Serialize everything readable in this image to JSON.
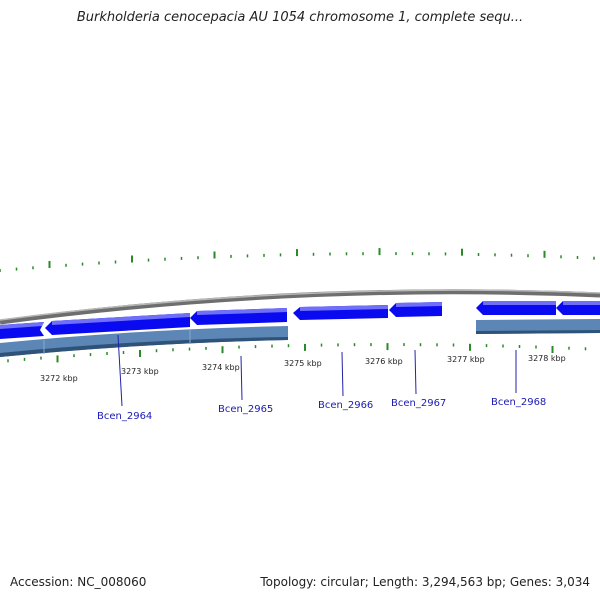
{
  "title": "Burkholderia cenocepacia AU 1054 chromosome 1, complete sequ...",
  "footer": {
    "accession": "Accession: NC_008060",
    "summary": "Topology: circular; Length: 3,294,563 bp; Genes: 3,034"
  },
  "ticks": [
    {
      "label": "3272 kbp"
    },
    {
      "label": "3273 kbp"
    },
    {
      "label": "3274 kbp"
    },
    {
      "label": "3275 kbp"
    },
    {
      "label": "3276 kbp"
    },
    {
      "label": "3277 kbp"
    },
    {
      "label": "3278 kbp"
    }
  ],
  "genes": [
    {
      "label": "Bcen_2964"
    },
    {
      "label": "Bcen_2965"
    },
    {
      "label": "Bcen_2966"
    },
    {
      "label": "Bcen_2967"
    },
    {
      "label": "Bcen_2968"
    }
  ],
  "colors": {
    "cds": "#0a0af0",
    "cds_light": "#6f6ff8",
    "gene_track": "#5b86b5",
    "gene_track_dark": "#2f5378",
    "backbone": "#8a8a8a",
    "gc_skew": "#2a8a2a",
    "label_text": "#1a1ab4"
  }
}
